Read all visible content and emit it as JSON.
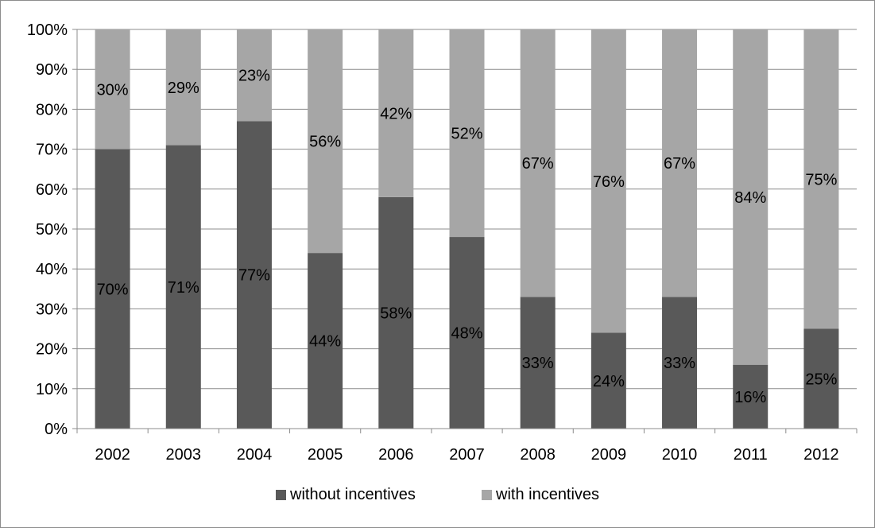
{
  "chart_data": {
    "type": "bar",
    "stacked": true,
    "percent_stacked": true,
    "categories": [
      "2002",
      "2003",
      "2004",
      "2005",
      "2006",
      "2007",
      "2008",
      "2009",
      "2010",
      "2011",
      "2012"
    ],
    "series": [
      {
        "name": "without incentives",
        "color": "#595959",
        "values": [
          70,
          71,
          77,
          44,
          58,
          48,
          33,
          24,
          33,
          16,
          25
        ],
        "labels": [
          "70%",
          "71%",
          "77%",
          "44%",
          "58%",
          "48%",
          "33%",
          "24%",
          "33%",
          "16%",
          "25%"
        ]
      },
      {
        "name": "with incentives",
        "color": "#a6a6a6",
        "values": [
          30,
          29,
          23,
          56,
          42,
          52,
          67,
          76,
          67,
          84,
          75
        ],
        "labels": [
          "30%",
          "29%",
          "23%",
          "56%",
          "42%",
          "52%",
          "67%",
          "76%",
          "67%",
          "84%",
          "75%"
        ]
      }
    ],
    "ylim": [
      0,
      100
    ],
    "yticks": [
      0,
      10,
      20,
      30,
      40,
      50,
      60,
      70,
      80,
      90,
      100
    ],
    "ytick_labels": [
      "0%",
      "10%",
      "20%",
      "30%",
      "40%",
      "50%",
      "60%",
      "70%",
      "80%",
      "90%",
      "100%"
    ],
    "grid": true,
    "legend_position": "bottom",
    "colors": {
      "gridline": "#8c8c8c",
      "axis": "#8c8c8c"
    }
  }
}
